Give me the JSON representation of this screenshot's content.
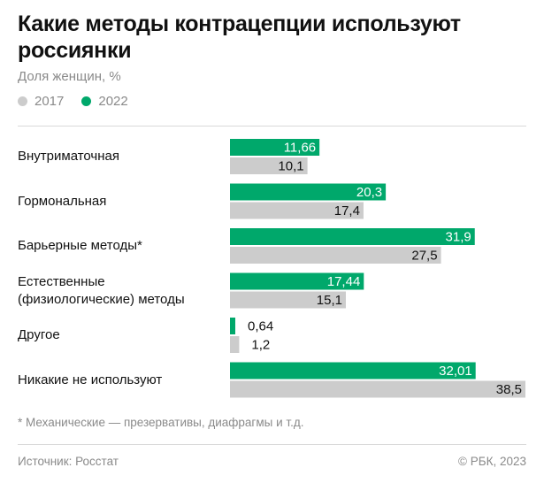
{
  "title": "Какие методы контрацепции используют россиянки",
  "subtitle": "Доля женщин, %",
  "legend": [
    {
      "label": "2017",
      "color": "#cccccc"
    },
    {
      "label": "2022",
      "color": "#00a86b"
    }
  ],
  "chart_data": {
    "type": "bar",
    "orientation": "horizontal",
    "title": "Какие методы контрацепции используют россиянки",
    "ylabel": "Доля женщин, %",
    "categories": [
      "Внутриматочная",
      "Гормональная",
      "Барьерные методы*",
      "Естественные (физиологические) методы",
      "Другое",
      "Никакие не используют"
    ],
    "category_lines": [
      [
        "Внутриматочная"
      ],
      [
        "Гормональная"
      ],
      [
        "Барьерные методы*"
      ],
      [
        "Естественные",
        "(физиологические) методы"
      ],
      [
        "Другое"
      ],
      [
        "Никакие не используют"
      ]
    ],
    "series": [
      {
        "name": "2022",
        "color": "#00a86b",
        "values": [
          11.66,
          20.3,
          31.9,
          17.44,
          0.64,
          32.01
        ],
        "labels": [
          "11,66",
          "20,3",
          "31,9",
          "17,44",
          "0,64",
          "32,01"
        ]
      },
      {
        "name": "2017",
        "color": "#cccccc",
        "values": [
          10.1,
          17.4,
          27.5,
          15.1,
          1.2,
          38.5
        ],
        "labels": [
          "10,1",
          "17,4",
          "27,5",
          "15,1",
          "1,2",
          "38,5"
        ]
      }
    ],
    "xlim": [
      0,
      38.5
    ],
    "grid": false
  },
  "footnote": "* Механические — презервативы, диафрагмы и т.д.",
  "source": "Источник: Росстат",
  "copyright": "© РБК, 2023"
}
